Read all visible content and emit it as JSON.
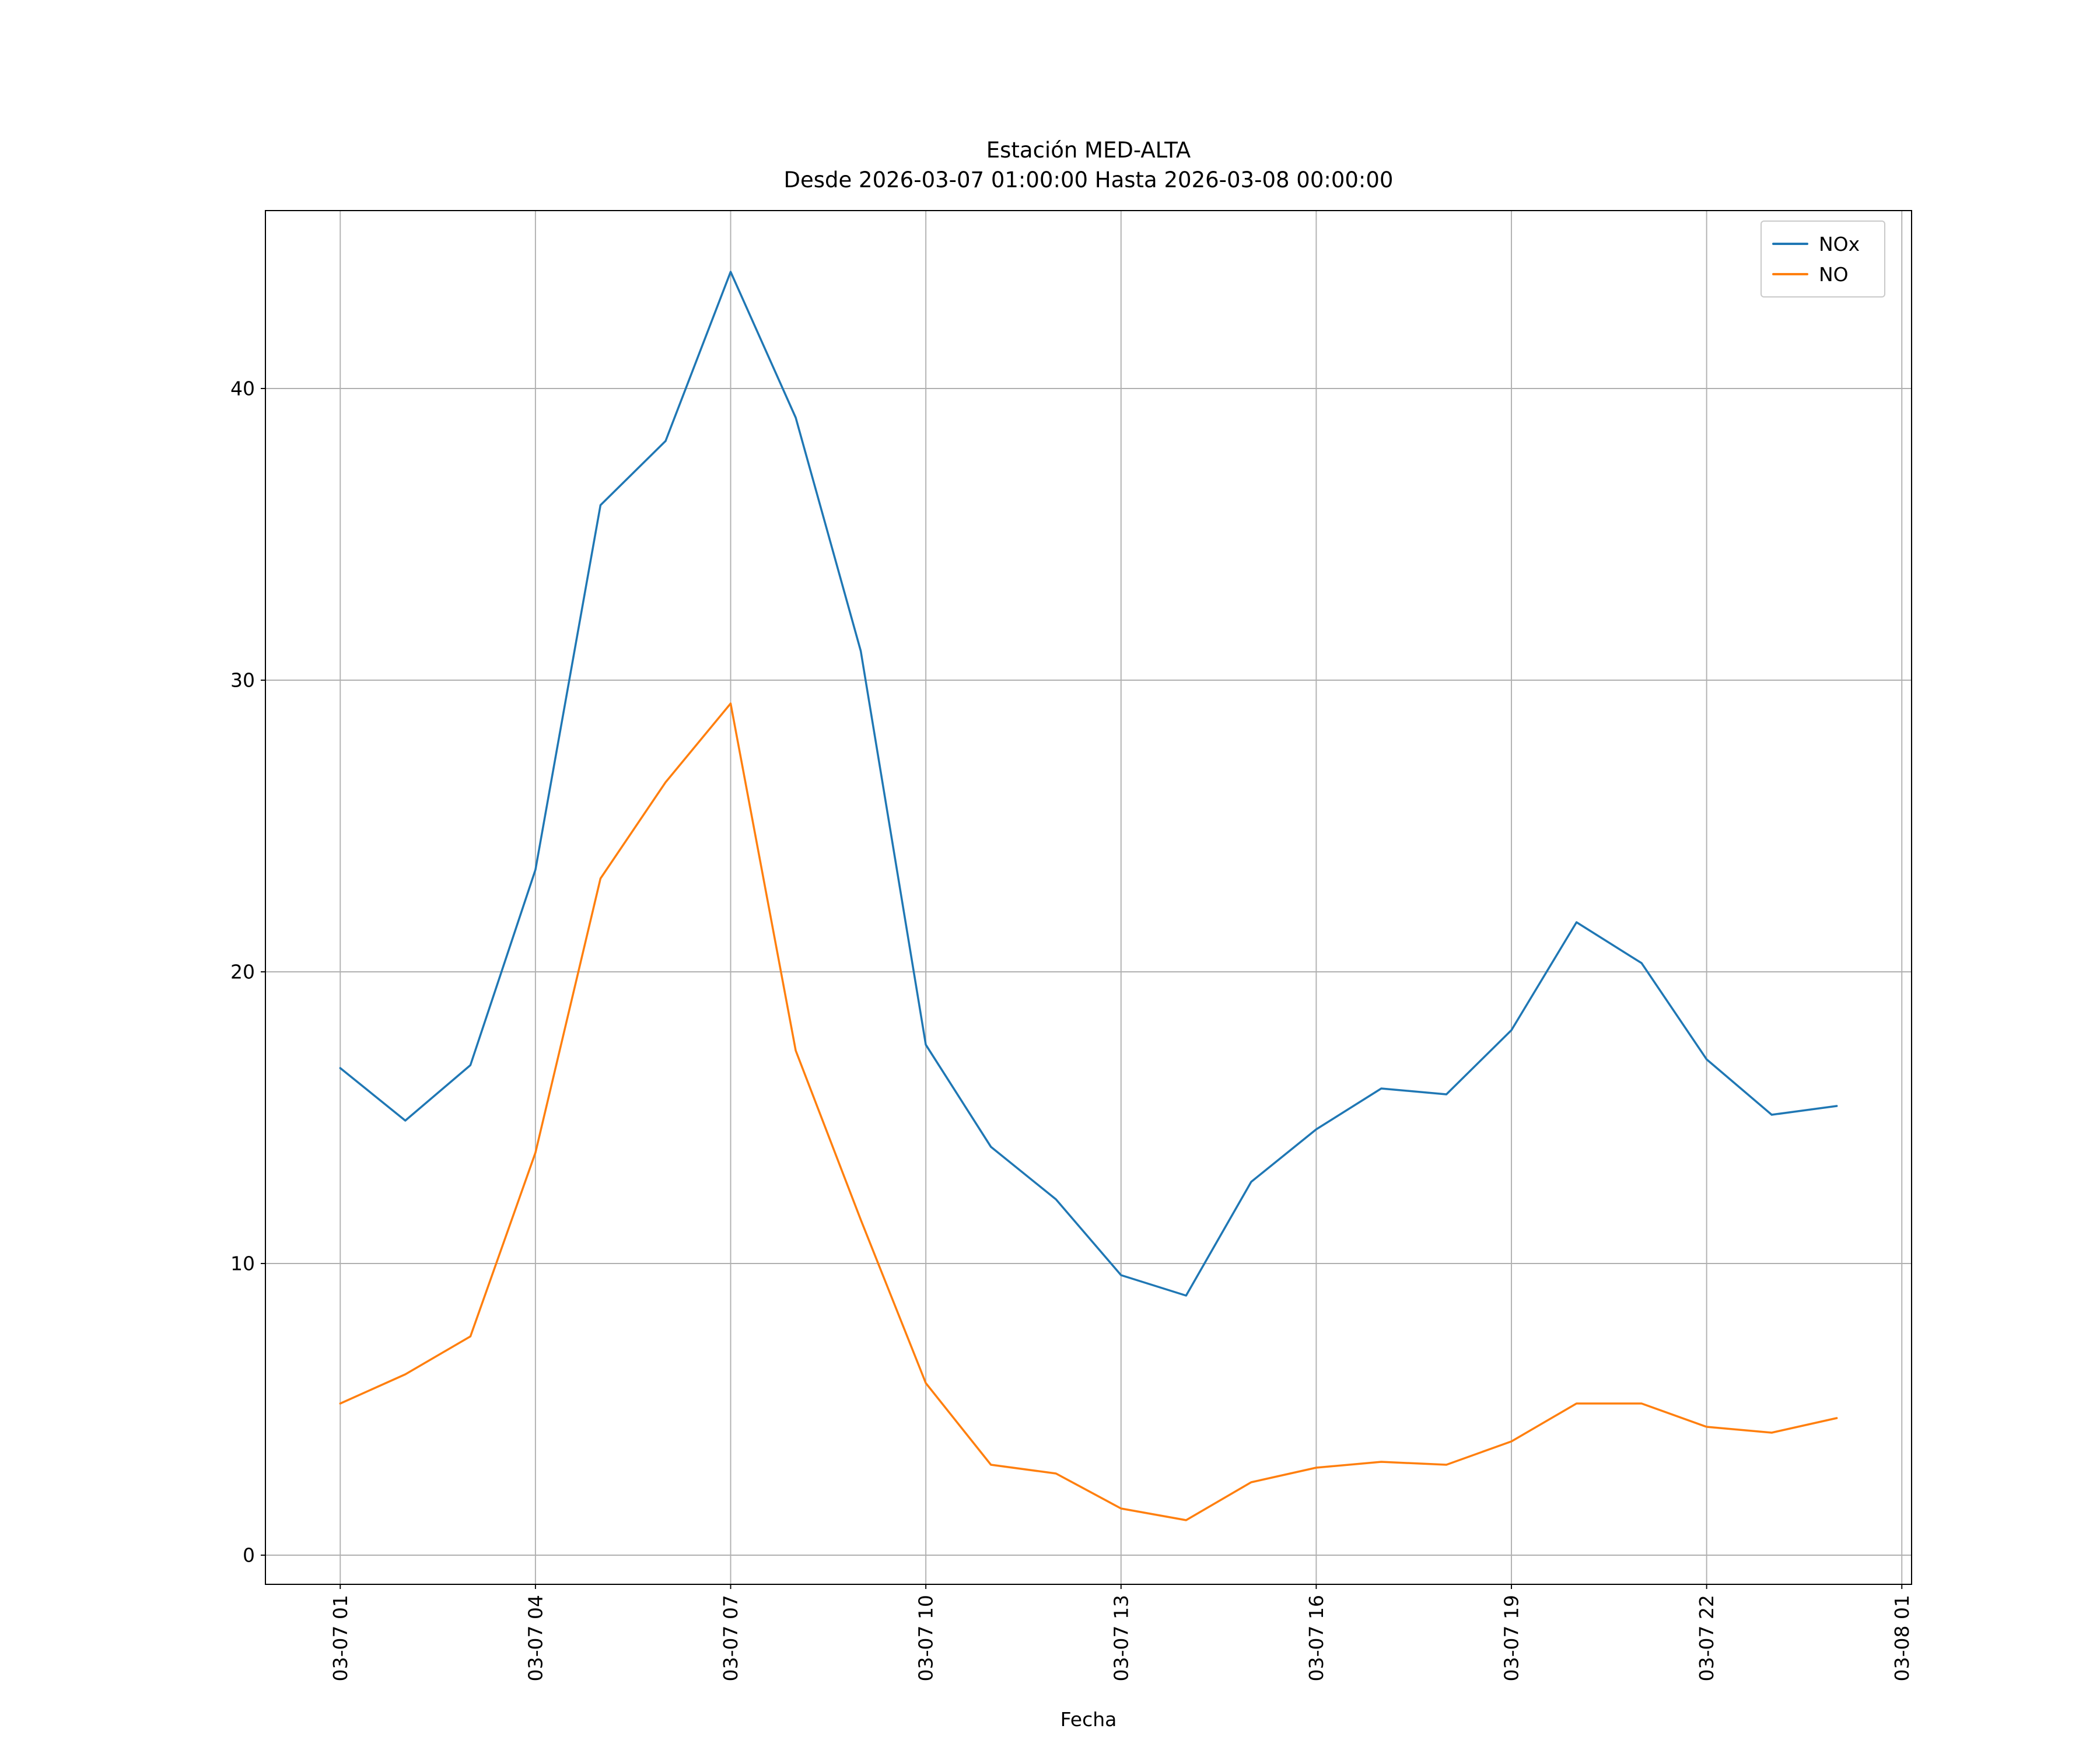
{
  "title": {
    "line1": "Estación MED-ALTA",
    "line2": "Desde 2026-03-07 01:00:00 Hasta 2026-03-08 00:00:00"
  },
  "chart_data": {
    "type": "line",
    "title": "Estación MED-ALTA\nDesde 2026-03-07 01:00:00 Hasta 2026-03-08 00:00:00",
    "xlabel": "Fecha",
    "ylabel": "",
    "grid": true,
    "grid_color": "#b0b0b0",
    "legend_position": "upper right",
    "x_start_hour": 1,
    "x_hours": [
      1,
      2,
      3,
      4,
      5,
      6,
      7,
      8,
      9,
      10,
      11,
      12,
      13,
      14,
      15,
      16,
      17,
      18,
      19,
      20,
      21,
      22,
      23,
      24
    ],
    "x_tick_positions": [
      1,
      4,
      7,
      10,
      13,
      16,
      19,
      22,
      25
    ],
    "x_tick_labels": [
      "03-07 01",
      "03-07 04",
      "03-07 07",
      "03-07 10",
      "03-07 13",
      "03-07 16",
      "03-07 19",
      "03-07 22",
      "03-08 01"
    ],
    "y_ticks": [
      0,
      10,
      20,
      30,
      40
    ],
    "xlim": [
      -0.15,
      25.15
    ],
    "ylim": [
      -1.0,
      46.1
    ],
    "series": [
      {
        "name": "NOx",
        "color": "#1f77b4",
        "values": [
          16.7,
          14.9,
          16.8,
          23.5,
          36.0,
          38.2,
          44.0,
          39.0,
          31.0,
          17.5,
          14.0,
          12.2,
          9.6,
          8.9,
          12.8,
          14.6,
          16.0,
          15.8,
          18.0,
          21.7,
          20.3,
          17.0,
          15.1,
          15.4
        ]
      },
      {
        "name": "NO",
        "color": "#ff7f0e",
        "values": [
          5.2,
          6.2,
          7.5,
          13.8,
          23.2,
          26.5,
          29.2,
          17.3,
          11.5,
          5.9,
          3.1,
          2.8,
          1.6,
          1.2,
          2.5,
          3.0,
          3.2,
          3.1,
          3.9,
          5.2,
          5.2,
          4.4,
          4.2,
          4.7
        ]
      }
    ]
  }
}
